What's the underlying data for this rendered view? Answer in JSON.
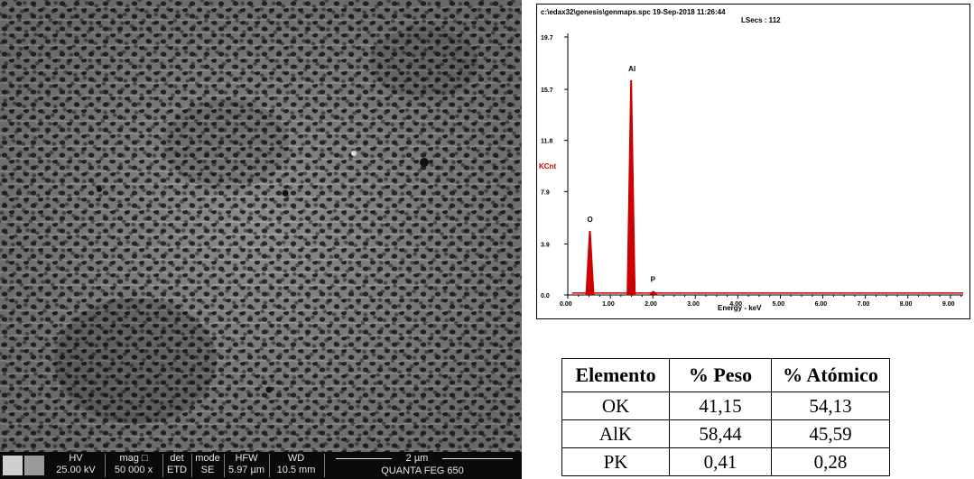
{
  "sem": {
    "fields": [
      {
        "label": "HV",
        "value": "25.00 kV"
      },
      {
        "label": "mag □",
        "value": "50 000 x"
      },
      {
        "label": "det",
        "value": "ETD"
      },
      {
        "label": "mode",
        "value": "SE"
      },
      {
        "label": "HFW",
        "value": "5.97 µm"
      },
      {
        "label": "WD",
        "value": "10.5 mm"
      }
    ],
    "scale_label": "2 µm",
    "instrument": "QUANTA FEG 650"
  },
  "spectrum": {
    "header_line1": "c:\\edax32\\genesis\\genmaps.spc  19-Sep-2018 11:26:44",
    "header_line2": "LSecs : 112",
    "y_label": "KCnt",
    "x_label": "Energy - keV",
    "y_ticks": [
      "0.0",
      "3.9",
      "7.9",
      "11.8",
      "15.7",
      "19.7"
    ],
    "x_ticks": [
      "0.00",
      "1.00",
      "2.00",
      "3.00",
      "4.00",
      "5.00",
      "6.00",
      "7.00",
      "8.00",
      "9.00"
    ],
    "trace_color": "#cc0000",
    "label_color": "#cc0000"
  },
  "chart_data": {
    "type": "bar",
    "title": "",
    "xlabel": "Energy - keV",
    "ylabel": "KCnt",
    "xlim": [
      0,
      9.3
    ],
    "ylim": [
      0,
      19.7
    ],
    "peaks": [
      {
        "element": "O",
        "energy": 0.52,
        "counts": 4.9
      },
      {
        "element": "Al",
        "energy": 1.49,
        "counts": 16.4
      },
      {
        "element": "P",
        "energy": 2.01,
        "counts": 0.3
      }
    ]
  },
  "table": {
    "headers": [
      "Elemento",
      "% Peso",
      "% Atómico"
    ],
    "rows": [
      [
        "OK",
        "41,15",
        "54,13"
      ],
      [
        "AlK",
        "58,44",
        "45,59"
      ],
      [
        "PK",
        "0,41",
        "0,28"
      ]
    ]
  }
}
